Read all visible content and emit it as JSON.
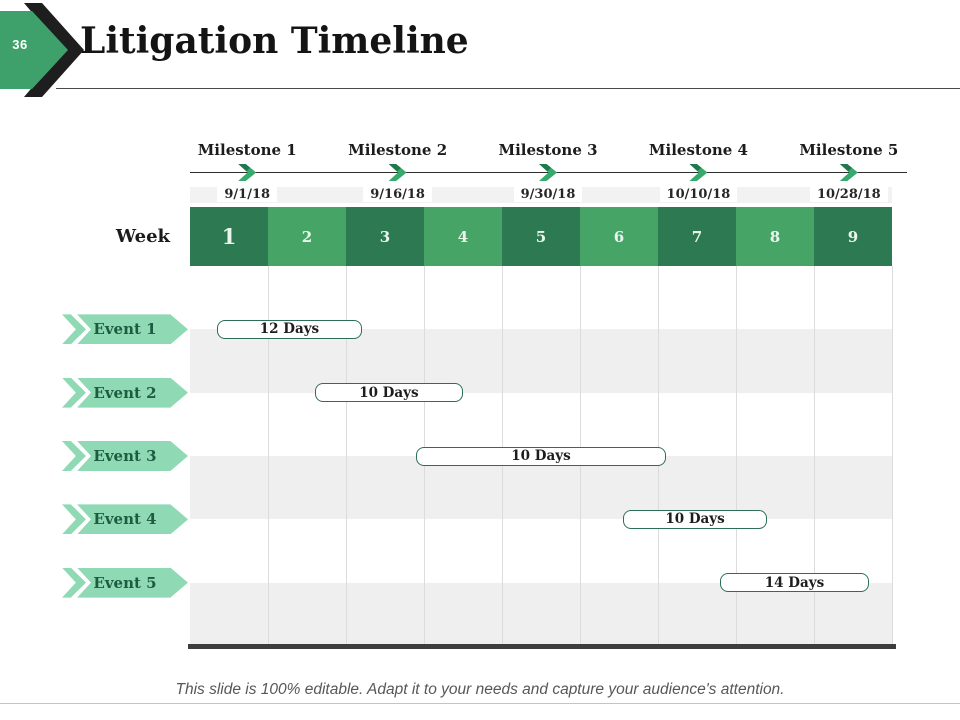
{
  "slide": {
    "number": "36",
    "title": "Litigation Timeline",
    "footer": "This slide is 100% editable. Adapt it to your needs and capture your audience's attention."
  },
  "icons": {
    "logo": "slide-number-arrow",
    "milestone_marker": "chevron-right",
    "event_label_shape": "ribbon-arrow-right"
  },
  "colors": {
    "week_cell_dark": "#2d7a52",
    "week_cell_light": "#46a566",
    "ribbon_mint": "#8fd9b4",
    "ribbon_text": "#1d5c41",
    "chevron_green_dark": "#1e7a4c",
    "chevron_green_light": "#36a96d",
    "bar_border": "#2d6e5a",
    "row_band_gray": "#efefef",
    "axis_dark": "#3d3d3d",
    "logo_green": "#3ea16b",
    "logo_dark": "#1e1e1e"
  },
  "chart_data": {
    "type": "bar",
    "subtype": "gantt-timeline",
    "title": "Litigation Timeline",
    "xlabel": "Week",
    "x_ticks": [
      "1",
      "2",
      "3",
      "4",
      "5",
      "6",
      "7",
      "8",
      "9"
    ],
    "xlim": [
      1,
      10
    ],
    "grid": true,
    "row_banding": true,
    "milestones": [
      {
        "label": "Milestone 1",
        "date": "9/1/18"
      },
      {
        "label": "Milestone 2",
        "date": "9/16/18"
      },
      {
        "label": "Milestone 3",
        "date": "9/30/18"
      },
      {
        "label": "Milestone 4",
        "date": "10/10/18"
      },
      {
        "label": "Milestone 5",
        "date": "10/28/18"
      }
    ],
    "series": [
      {
        "name": "Event 1",
        "label": "12 Days",
        "start_week": 1.35,
        "end_week": 3.2
      },
      {
        "name": "Event 2",
        "label": "10 Days",
        "start_week": 2.6,
        "end_week": 4.5
      },
      {
        "name": "Event 3",
        "label": "10 Days",
        "start_week": 3.9,
        "end_week": 7.1
      },
      {
        "name": "Event 4",
        "label": "10 Days",
        "start_week": 6.55,
        "end_week": 8.4
      },
      {
        "name": "Event 5",
        "label": "14 Days",
        "start_week": 7.8,
        "end_week": 9.7
      }
    ]
  }
}
